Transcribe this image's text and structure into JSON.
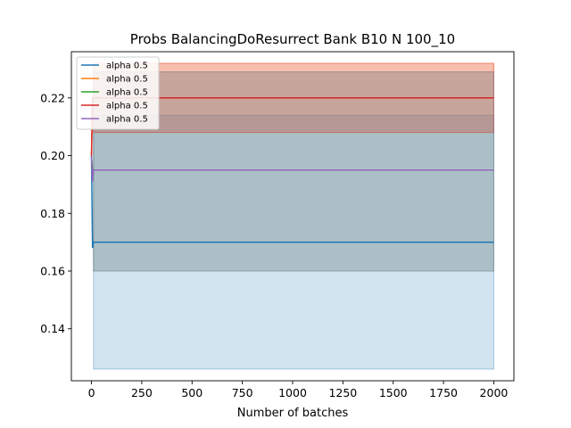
{
  "chart_data": {
    "type": "line",
    "title": "Probs BalancingDoResurrect Bank B10 N 100_10",
    "xlabel": "Number of batches",
    "ylabel": "",
    "xlim": [
      -100,
      2100
    ],
    "ylim": [
      0.122,
      0.236
    ],
    "x_ticks": [
      0,
      250,
      500,
      750,
      1000,
      1250,
      1500,
      1750,
      2000
    ],
    "y_ticks": [
      0.14,
      0.16,
      0.18,
      0.2,
      0.22
    ],
    "grid": false,
    "legend_position": "top-left",
    "series": [
      {
        "name": "alpha 0.5",
        "color": "#1f77b4",
        "x": [
          0,
          5,
          10,
          2000
        ],
        "y": [
          0.2,
          0.168,
          0.17,
          0.17
        ],
        "band": {
          "x": [
            10,
            2000
          ],
          "lower": 0.126,
          "upper": 0.214
        }
      },
      {
        "name": "alpha 0.5",
        "color": "#ff7f0e",
        "x": [
          0,
          5,
          10,
          2000
        ],
        "y": [
          0.2,
          0.22,
          0.22,
          0.22
        ],
        "band": {
          "x": [
            10,
            2000
          ],
          "lower": 0.208,
          "upper": 0.232
        }
      },
      {
        "name": "alpha 0.5",
        "color": "#2ca02c",
        "x": [
          0,
          5,
          10,
          2000
        ],
        "y": [
          0.2,
          0.195,
          0.195,
          0.195
        ],
        "band": {
          "x": [
            10,
            2000
          ],
          "lower": 0.16,
          "upper": 0.229
        }
      },
      {
        "name": "alpha 0.5",
        "color": "#d62728",
        "x": [
          0,
          5,
          10,
          2000
        ],
        "y": [
          0.2,
          0.22,
          0.22,
          0.22
        ],
        "band": {
          "x": [
            10,
            2000
          ],
          "lower": 0.208,
          "upper": 0.232
        }
      },
      {
        "name": "alpha 0.5",
        "color": "#9467bd",
        "x": [
          0,
          5,
          10,
          2000
        ],
        "y": [
          0.2,
          0.191,
          0.195,
          0.195
        ],
        "band": {
          "x": [
            10,
            2000
          ],
          "lower": 0.16,
          "upper": 0.229
        }
      }
    ]
  }
}
